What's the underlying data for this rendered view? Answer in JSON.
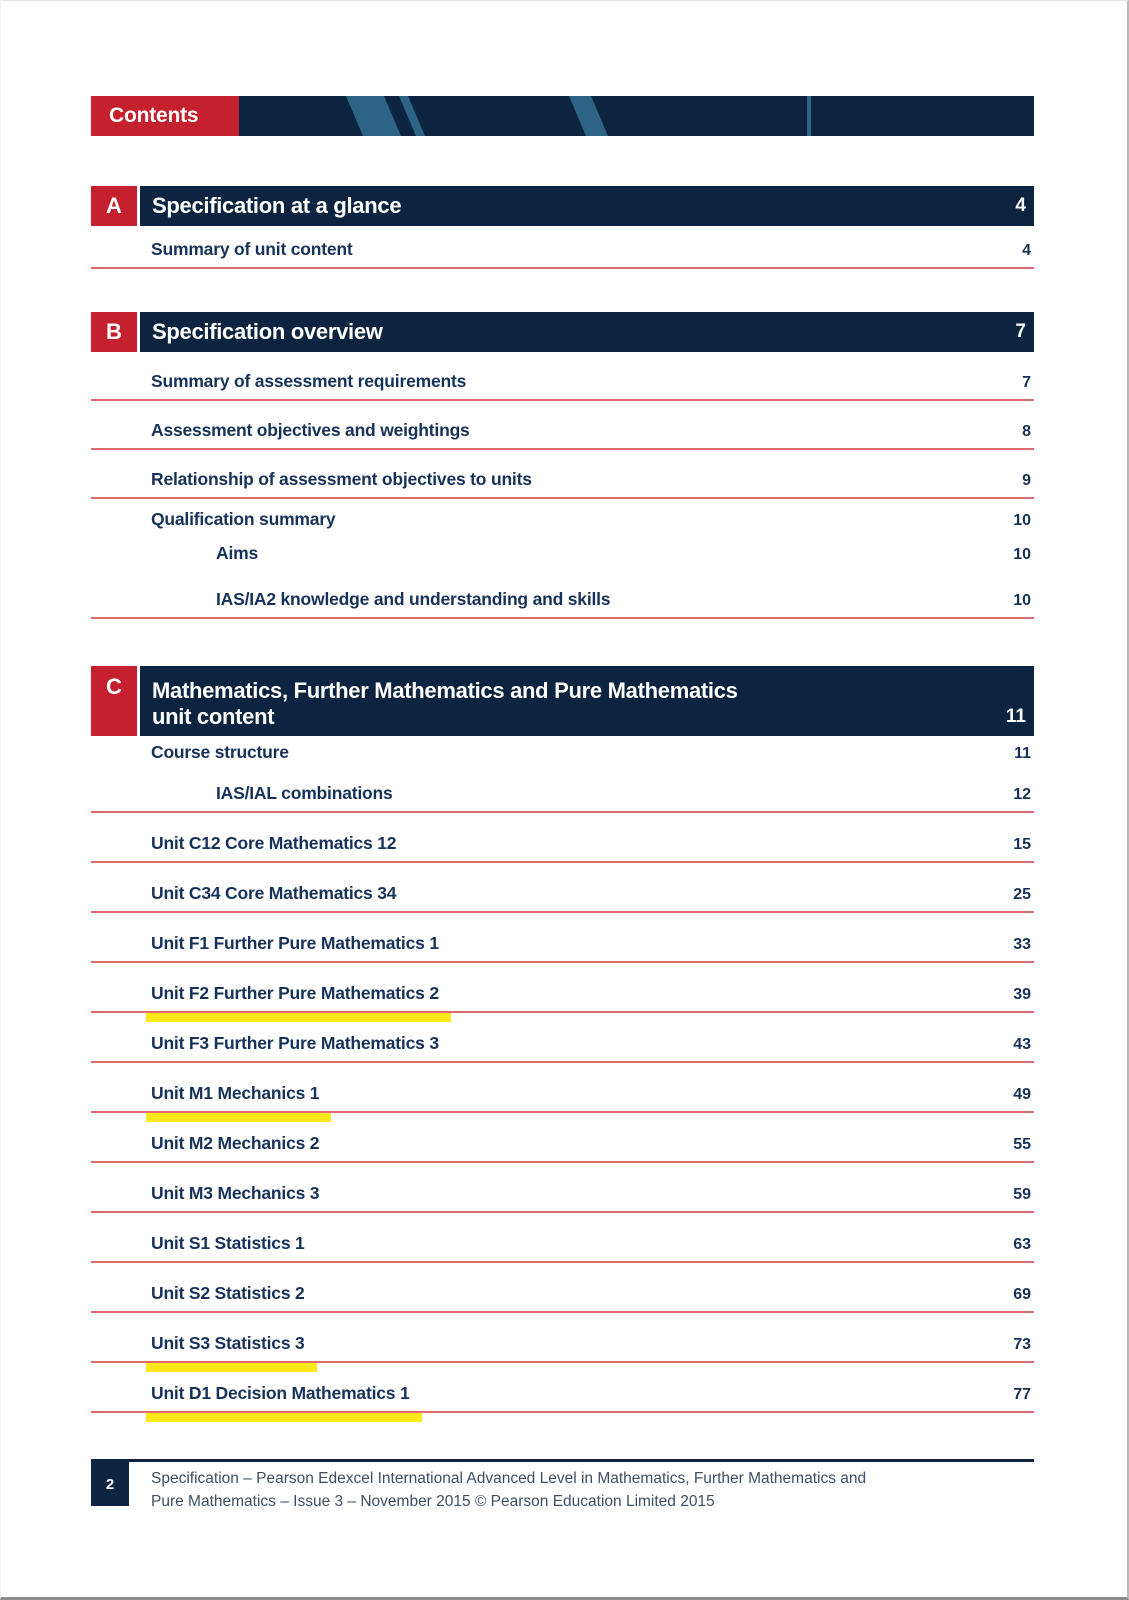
{
  "page": {
    "header_label": "Contents",
    "colors": {
      "navy": "#0d2440",
      "red": "#c4202e",
      "rule_red": "#e0696f",
      "stripe_blue": "#2d6384",
      "highlight_yellow": "#ffe81a",
      "entry_text": "#17325a"
    },
    "footer": {
      "page_number": "2",
      "line1": "Specification – Pearson Edexcel International Advanced Level in Mathematics, Further Mathematics and",
      "line2": "Pure Mathematics – Issue 3 – November 2015 © Pearson Education Limited 2015"
    }
  },
  "sections": [
    {
      "letter": "A",
      "title_lines": [
        "Specification at a glance"
      ],
      "page": "4",
      "entries": [
        {
          "label": "Summary of unit content",
          "page": "4",
          "indent": 0,
          "rule": true,
          "highlight": false
        }
      ]
    },
    {
      "letter": "B",
      "title_lines": [
        "Specification overview"
      ],
      "page": "7",
      "entries": [
        {
          "label": "Summary of assessment requirements",
          "page": "7",
          "indent": 0,
          "rule": true,
          "highlight": false
        },
        {
          "label": "Assessment objectives and weightings",
          "page": "8",
          "indent": 0,
          "rule": true,
          "highlight": false
        },
        {
          "label": "Relationship of assessment objectives to units",
          "page": "9",
          "indent": 0,
          "rule": true,
          "highlight": false
        },
        {
          "label": "Qualification summary",
          "page": "10",
          "indent": 0,
          "rule": false,
          "highlight": false
        },
        {
          "label": "Aims",
          "page": "10",
          "indent": 1,
          "rule": false,
          "highlight": false
        },
        {
          "label": "IAS/IA2 knowledge and understanding and skills",
          "page": "10",
          "indent": 1,
          "rule": true,
          "highlight": false
        }
      ]
    },
    {
      "letter": "C",
      "title_lines": [
        "Mathematics, Further Mathematics and Pure Mathematics",
        "unit content"
      ],
      "page": "11",
      "entries": [
        {
          "label": "Course structure",
          "page": "11",
          "indent": 0,
          "rule": false,
          "highlight": false
        },
        {
          "label": "IAS/IAL combinations",
          "page": "12",
          "indent": 1,
          "rule": true,
          "highlight": false
        },
        {
          "label": "Unit C12 Core Mathematics 12",
          "page": "15",
          "indent": 0,
          "rule": true,
          "highlight": false
        },
        {
          "label": "Unit C34 Core Mathematics 34",
          "page": "25",
          "indent": 0,
          "rule": true,
          "highlight": false
        },
        {
          "label": "Unit F1 Further Pure Mathematics 1",
          "page": "33",
          "indent": 0,
          "rule": true,
          "highlight": false
        },
        {
          "label": "Unit F2 Further Pure Mathematics 2",
          "page": "39",
          "indent": 0,
          "rule": true,
          "highlight": true
        },
        {
          "label": "Unit F3 Further Pure Mathematics 3",
          "page": "43",
          "indent": 0,
          "rule": true,
          "highlight": false
        },
        {
          "label": "Unit M1 Mechanics 1",
          "page": "49",
          "indent": 0,
          "rule": true,
          "highlight": true
        },
        {
          "label": "Unit M2 Mechanics 2",
          "page": "55",
          "indent": 0,
          "rule": true,
          "highlight": false
        },
        {
          "label": "Unit M3 Mechanics 3",
          "page": "59",
          "indent": 0,
          "rule": true,
          "highlight": false
        },
        {
          "label": "Unit S1 Statistics 1",
          "page": "63",
          "indent": 0,
          "rule": true,
          "highlight": false
        },
        {
          "label": "Unit S2 Statistics 2",
          "page": "69",
          "indent": 0,
          "rule": true,
          "highlight": false
        },
        {
          "label": "Unit S3 Statistics 3",
          "page": "73",
          "indent": 0,
          "rule": true,
          "highlight": true
        },
        {
          "label": "Unit D1 Decision Mathematics 1",
          "page": "77",
          "indent": 0,
          "rule": true,
          "highlight": true
        }
      ]
    }
  ]
}
